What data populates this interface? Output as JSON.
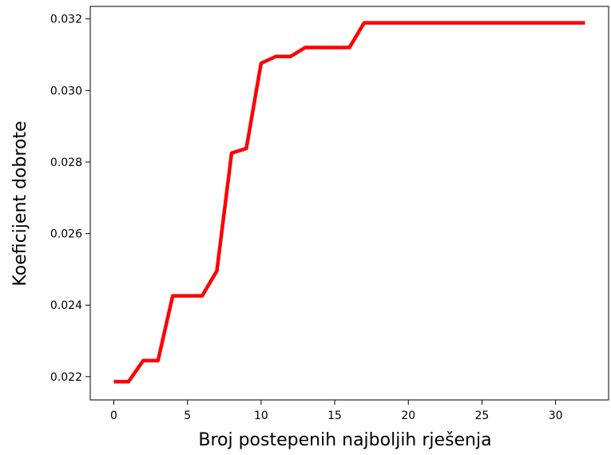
{
  "chart_data": {
    "type": "line",
    "title": "",
    "xlabel": "Broj postepenih najboljih rješenja",
    "ylabel": "Koeficijent dobrote",
    "xlim": [
      -1.6,
      33.6
    ],
    "ylim": [
      0.02135,
      0.03235
    ],
    "x_ticks": [
      0,
      5,
      10,
      15,
      20,
      25,
      30
    ],
    "x_tick_labels": [
      "0",
      "5",
      "10",
      "15",
      "20",
      "25",
      "30"
    ],
    "y_ticks": [
      0.022,
      0.024,
      0.026,
      0.028,
      0.03,
      0.032
    ],
    "y_tick_labels": [
      "0.022",
      "0.024",
      "0.026",
      "0.028",
      "0.030",
      "0.032"
    ],
    "grid": false,
    "legend": "none",
    "series": [
      {
        "color": "#ff0000",
        "x": [
          0,
          1,
          2,
          3,
          4,
          5,
          6,
          7,
          8,
          9,
          10,
          11,
          12,
          13,
          14,
          15,
          16,
          17,
          18,
          19,
          20,
          21,
          22,
          23,
          24,
          25,
          26,
          27,
          28,
          29,
          30,
          31,
          32
        ],
        "y": [
          0.02186,
          0.02186,
          0.02245,
          0.02245,
          0.02426,
          0.02426,
          0.02426,
          0.02496,
          0.02825,
          0.02838,
          0.03076,
          0.03095,
          0.03095,
          0.0312,
          0.0312,
          0.0312,
          0.0312,
          0.03189,
          0.03189,
          0.03189,
          0.03189,
          0.03189,
          0.03189,
          0.03189,
          0.03189,
          0.03189,
          0.03189,
          0.03189,
          0.03189,
          0.03189,
          0.03189,
          0.03189,
          0.03189
        ]
      }
    ]
  }
}
